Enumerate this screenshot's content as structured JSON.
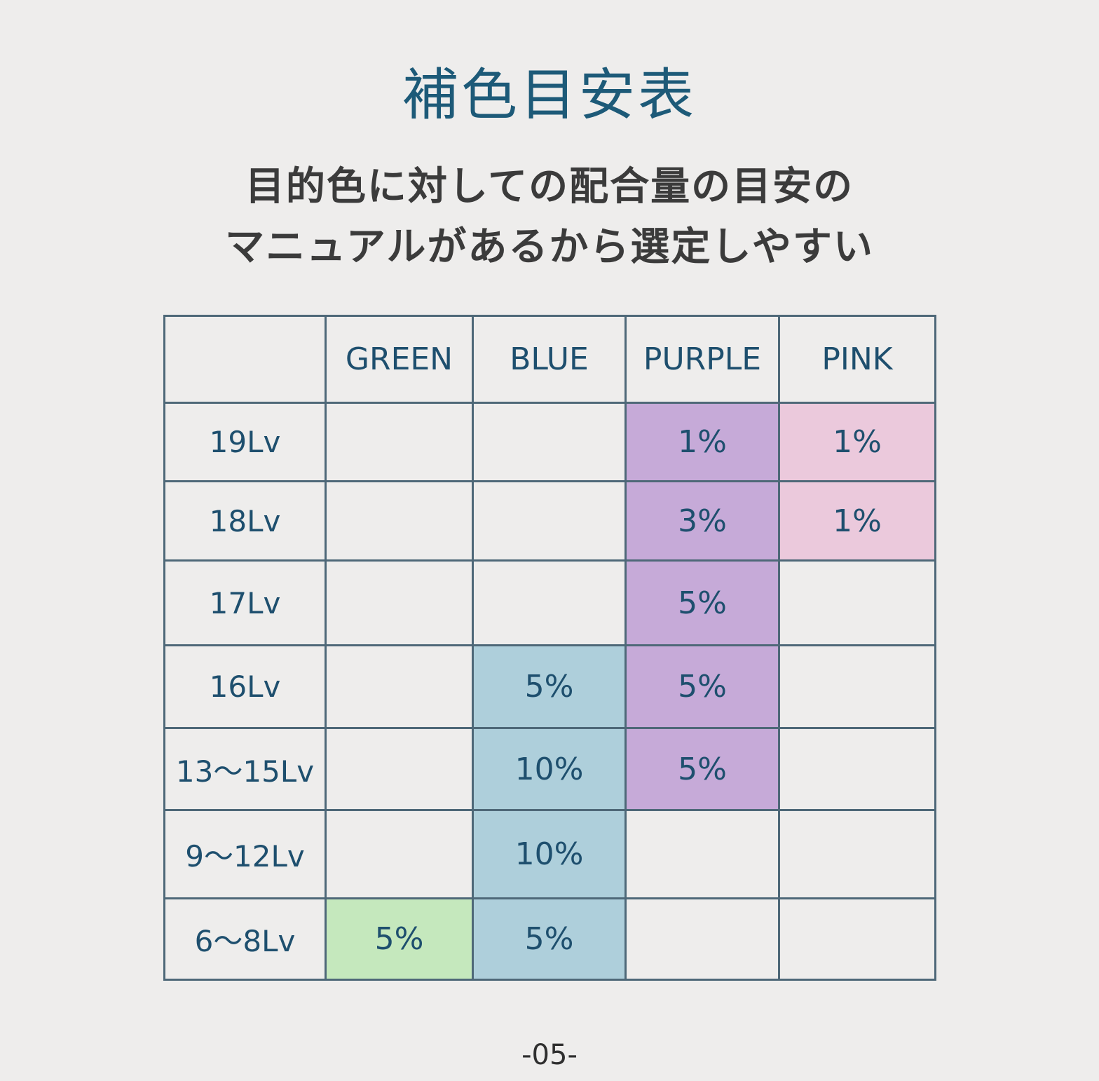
{
  "title": "補色目安表",
  "subtitle": {
    "line1": "目的色に対しての配合量の目安の",
    "line2": "マニュアルがあるから選定しやすい"
  },
  "chart_data": {
    "type": "table",
    "columns": [
      "",
      "GREEN",
      "BLUE",
      "PURPLE",
      "PINK"
    ],
    "rows": [
      {
        "level": "19Lv",
        "GREEN": "",
        "BLUE": "",
        "PURPLE": "1%",
        "PINK": "1%"
      },
      {
        "level": "18Lv",
        "GREEN": "",
        "BLUE": "",
        "PURPLE": "3%",
        "PINK": "1%"
      },
      {
        "level": "17Lv",
        "GREEN": "",
        "BLUE": "",
        "PURPLE": "5%",
        "PINK": ""
      },
      {
        "level": "16Lv",
        "GREEN": "",
        "BLUE": "5%",
        "PURPLE": "5%",
        "PINK": ""
      },
      {
        "level": "13〜15Lv",
        "GREEN": "",
        "BLUE": "10%",
        "PURPLE": "5%",
        "PINK": ""
      },
      {
        "level": "9〜12Lv",
        "GREEN": "",
        "BLUE": "10%",
        "PURPLE": "",
        "PINK": ""
      },
      {
        "level": "6〜8Lv",
        "GREEN": "5%",
        "BLUE": "5%",
        "PURPLE": "",
        "PINK": ""
      }
    ],
    "cell_colors": {
      "GREEN": "#c5e8bd",
      "BLUE": "#aecfdb",
      "PURPLE": "#c6aad8",
      "PINK": "#ebc9dc"
    }
  },
  "page_number": "-05-"
}
